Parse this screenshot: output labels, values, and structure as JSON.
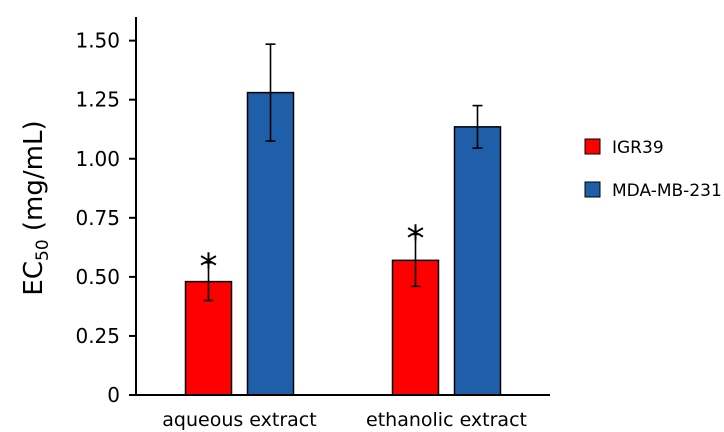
{
  "chart_data": {
    "type": "bar",
    "categories": [
      "aqueous extract",
      "ethanolic extract"
    ],
    "series": [
      {
        "name": "IGR39",
        "color": "#ff0000",
        "values": [
          0.48,
          0.57
        ],
        "errors": [
          0.08,
          0.11
        ],
        "significance": [
          "*",
          "*"
        ]
      },
      {
        "name": "MDA-MB-231",
        "color": "#1f5faa",
        "values": [
          1.28,
          1.135
        ],
        "errors": [
          0.205,
          0.09
        ],
        "significance": [
          "",
          ""
        ]
      }
    ],
    "ylabel_main": "EC",
    "ylabel_sub": "50",
    "ylabel_unit": " (mg/mL)",
    "yticks": [
      "0",
      "0.25",
      "0.50",
      "0.75",
      "1.00",
      "1.25",
      "1.50"
    ],
    "ylim": [
      0,
      1.6
    ],
    "legend_position": "right",
    "grid": false
  }
}
